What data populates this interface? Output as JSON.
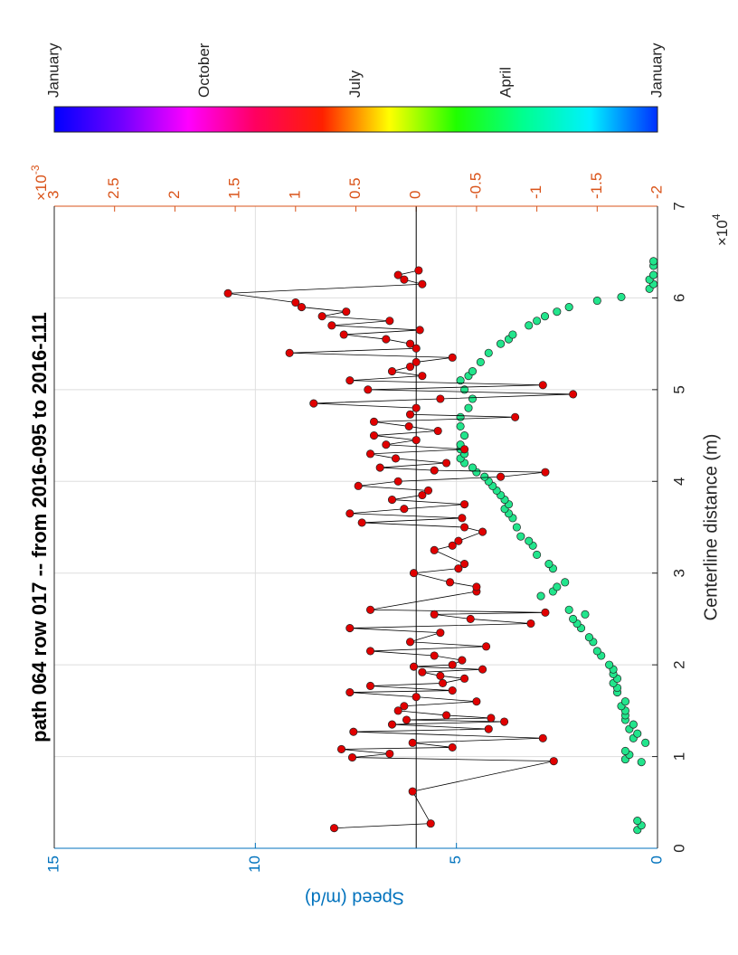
{
  "chart_data": {
    "type": "scatter",
    "title": "path 064 row 017 -- from 2016-095 to 2016-111",
    "x_label": "Centerline distance (m)",
    "y_label": "Speed (m/d)",
    "x_exponent": {
      "base": "×10",
      "power": "4"
    },
    "y2_exponent": {
      "base": "×10",
      "power": "-3"
    },
    "xlim": [
      0,
      7
    ],
    "xticks": [
      0,
      1,
      2,
      3,
      4,
      5,
      6,
      7
    ],
    "ylim": [
      0,
      15
    ],
    "yticks": [
      0,
      5,
      10,
      15
    ],
    "y2lim": [
      -2,
      3
    ],
    "y2ticks": [
      -2,
      -1.5,
      -1,
      -0.5,
      0,
      0.5,
      1,
      1.5,
      2,
      2.5,
      3
    ],
    "y_color": "#0072bd",
    "y2_color": "#d95319",
    "grid": true,
    "hlines": [
      {
        "axis": "y2",
        "value": 0
      }
    ],
    "colorbar": {
      "labels": [
        "January",
        "October",
        "July",
        "April",
        "January"
      ],
      "colors": [
        "#0000ff",
        "#7000ff",
        "#ff00ff",
        "#ff0060",
        "#ff2000",
        "#ffff00",
        "#20ff00",
        "#00ff90",
        "#00f0ff",
        "#0030ff"
      ]
    },
    "series": [
      {
        "color": "#22e58c",
        "line": false,
        "x": [
          0.2,
          0.25,
          0.3,
          0.94,
          0.97,
          1.02,
          1.06,
          1.15,
          1.2,
          1.25,
          1.3,
          1.35,
          1.4,
          1.45,
          1.5,
          1.55,
          1.6,
          1.7,
          1.75,
          1.8,
          1.85,
          1.9,
          1.95,
          2.0,
          2.1,
          2.15,
          2.25,
          2.3,
          2.4,
          2.45,
          2.5,
          2.55,
          2.6,
          2.75,
          2.8,
          2.85,
          2.9,
          3.05,
          3.1,
          3.2,
          3.3,
          3.35,
          3.4,
          3.5,
          3.6,
          3.65,
          3.7,
          3.75,
          3.8,
          3.85,
          3.9,
          3.95,
          4.0,
          4.05,
          4.1,
          4.15,
          4.2,
          4.25,
          4.3,
          4.35,
          4.4,
          4.5,
          4.6,
          4.7,
          4.8,
          4.9,
          5.0,
          5.1,
          5.15,
          5.2,
          5.3,
          5.4,
          5.5,
          5.55,
          5.6,
          5.7,
          5.75,
          5.8,
          5.85,
          5.9,
          5.97,
          6.01,
          6.1,
          6.15,
          6.2,
          6.25,
          6.35,
          6.4
        ],
        "values": [
          0.5,
          0.4,
          0.5,
          0.4,
          0.8,
          0.7,
          0.8,
          0.3,
          0.6,
          0.5,
          0.7,
          0.6,
          0.8,
          0.8,
          0.8,
          0.9,
          0.8,
          1.0,
          1.0,
          1.1,
          1.0,
          1.1,
          1.1,
          1.2,
          1.4,
          1.5,
          1.6,
          1.7,
          1.9,
          2.0,
          2.1,
          1.8,
          2.2,
          2.9,
          2.6,
          2.5,
          2.3,
          2.6,
          2.7,
          3.0,
          3.1,
          3.2,
          3.4,
          3.5,
          3.6,
          3.7,
          3.8,
          3.7,
          3.8,
          3.9,
          4.0,
          4.1,
          4.2,
          4.3,
          4.5,
          4.6,
          4.8,
          4.9,
          4.8,
          4.9,
          4.9,
          4.8,
          4.9,
          4.9,
          4.7,
          4.6,
          4.8,
          4.9,
          4.7,
          4.6,
          4.4,
          4.2,
          3.9,
          3.7,
          3.6,
          3.2,
          3.0,
          2.8,
          2.5,
          2.2,
          1.5,
          0.9,
          0.2,
          0.1,
          0.2,
          0.1,
          0.1,
          0.1
        ]
      },
      {
        "color": "#e00000",
        "line": true,
        "axis": "y2",
        "x": [
          0.22,
          0.27,
          0.62,
          0.95,
          0.99,
          1.03,
          1.08,
          1.1,
          1.15,
          1.2,
          1.27,
          1.3,
          1.35,
          1.38,
          1.4,
          1.42,
          1.45,
          1.5,
          1.55,
          1.6,
          1.65,
          1.7,
          1.72,
          1.77,
          1.8,
          1.85,
          1.88,
          1.92,
          1.95,
          1.98,
          2.0,
          2.05,
          2.1,
          2.15,
          2.2,
          2.25,
          2.35,
          2.4,
          2.45,
          2.5,
          2.55,
          2.57,
          2.6,
          2.8,
          2.85,
          2.9,
          3.0,
          3.05,
          3.1,
          3.25,
          3.3,
          3.35,
          3.45,
          3.5,
          3.55,
          3.6,
          3.65,
          3.7,
          3.75,
          3.8,
          3.85,
          3.9,
          3.95,
          4.0,
          4.05,
          4.1,
          4.12,
          4.15,
          4.2,
          4.25,
          4.3,
          4.35,
          4.4,
          4.45,
          4.5,
          4.55,
          4.6,
          4.65,
          4.7,
          4.73,
          4.8,
          4.85,
          4.9,
          4.95,
          5.0,
          5.05,
          5.1,
          5.15,
          5.2,
          5.25,
          5.3,
          5.35,
          5.4,
          5.45,
          5.5,
          5.55,
          5.6,
          5.65,
          5.7,
          5.75,
          5.8,
          5.85,
          5.9,
          5.95,
          6.05,
          6.15,
          6.2,
          6.25,
          6.3
        ],
        "values": [
          0.68,
          -0.12,
          0.03,
          -1.14,
          0.53,
          0.22,
          0.62,
          -0.3,
          0.03,
          -1.05,
          0.52,
          -0.6,
          0.2,
          -0.73,
          0.08,
          -0.62,
          -0.25,
          0.15,
          0.1,
          -0.5,
          0.0,
          0.55,
          -0.3,
          0.38,
          -0.22,
          -0.4,
          -0.2,
          -0.05,
          -0.55,
          0.02,
          -0.3,
          -0.38,
          -0.15,
          0.38,
          -0.58,
          0.05,
          -0.2,
          0.55,
          -0.95,
          -0.45,
          -0.15,
          -1.07,
          0.38,
          -0.5,
          -0.5,
          -0.28,
          0.02,
          -0.35,
          -0.4,
          -0.15,
          -0.3,
          -0.35,
          -0.55,
          -0.4,
          0.45,
          -0.38,
          0.55,
          0.1,
          -0.4,
          0.2,
          -0.05,
          -0.1,
          0.48,
          0.15,
          -0.7,
          -1.07,
          -0.15,
          0.3,
          -0.25,
          0.17,
          0.38,
          -0.4,
          0.25,
          0.0,
          0.35,
          -0.18,
          0.06,
          0.35,
          -0.82,
          0.05,
          0.0,
          0.85,
          -0.2,
          -1.3,
          0.4,
          -1.05,
          0.55,
          -0.05,
          0.2,
          0.05,
          0.0,
          -0.3,
          1.05,
          0.0,
          0.05,
          0.25,
          0.6,
          -0.03,
          0.7,
          0.22,
          0.78,
          0.58,
          0.95,
          1.0,
          1.56,
          -0.05,
          0.1,
          0.15,
          -0.02
        ]
      }
    ]
  }
}
